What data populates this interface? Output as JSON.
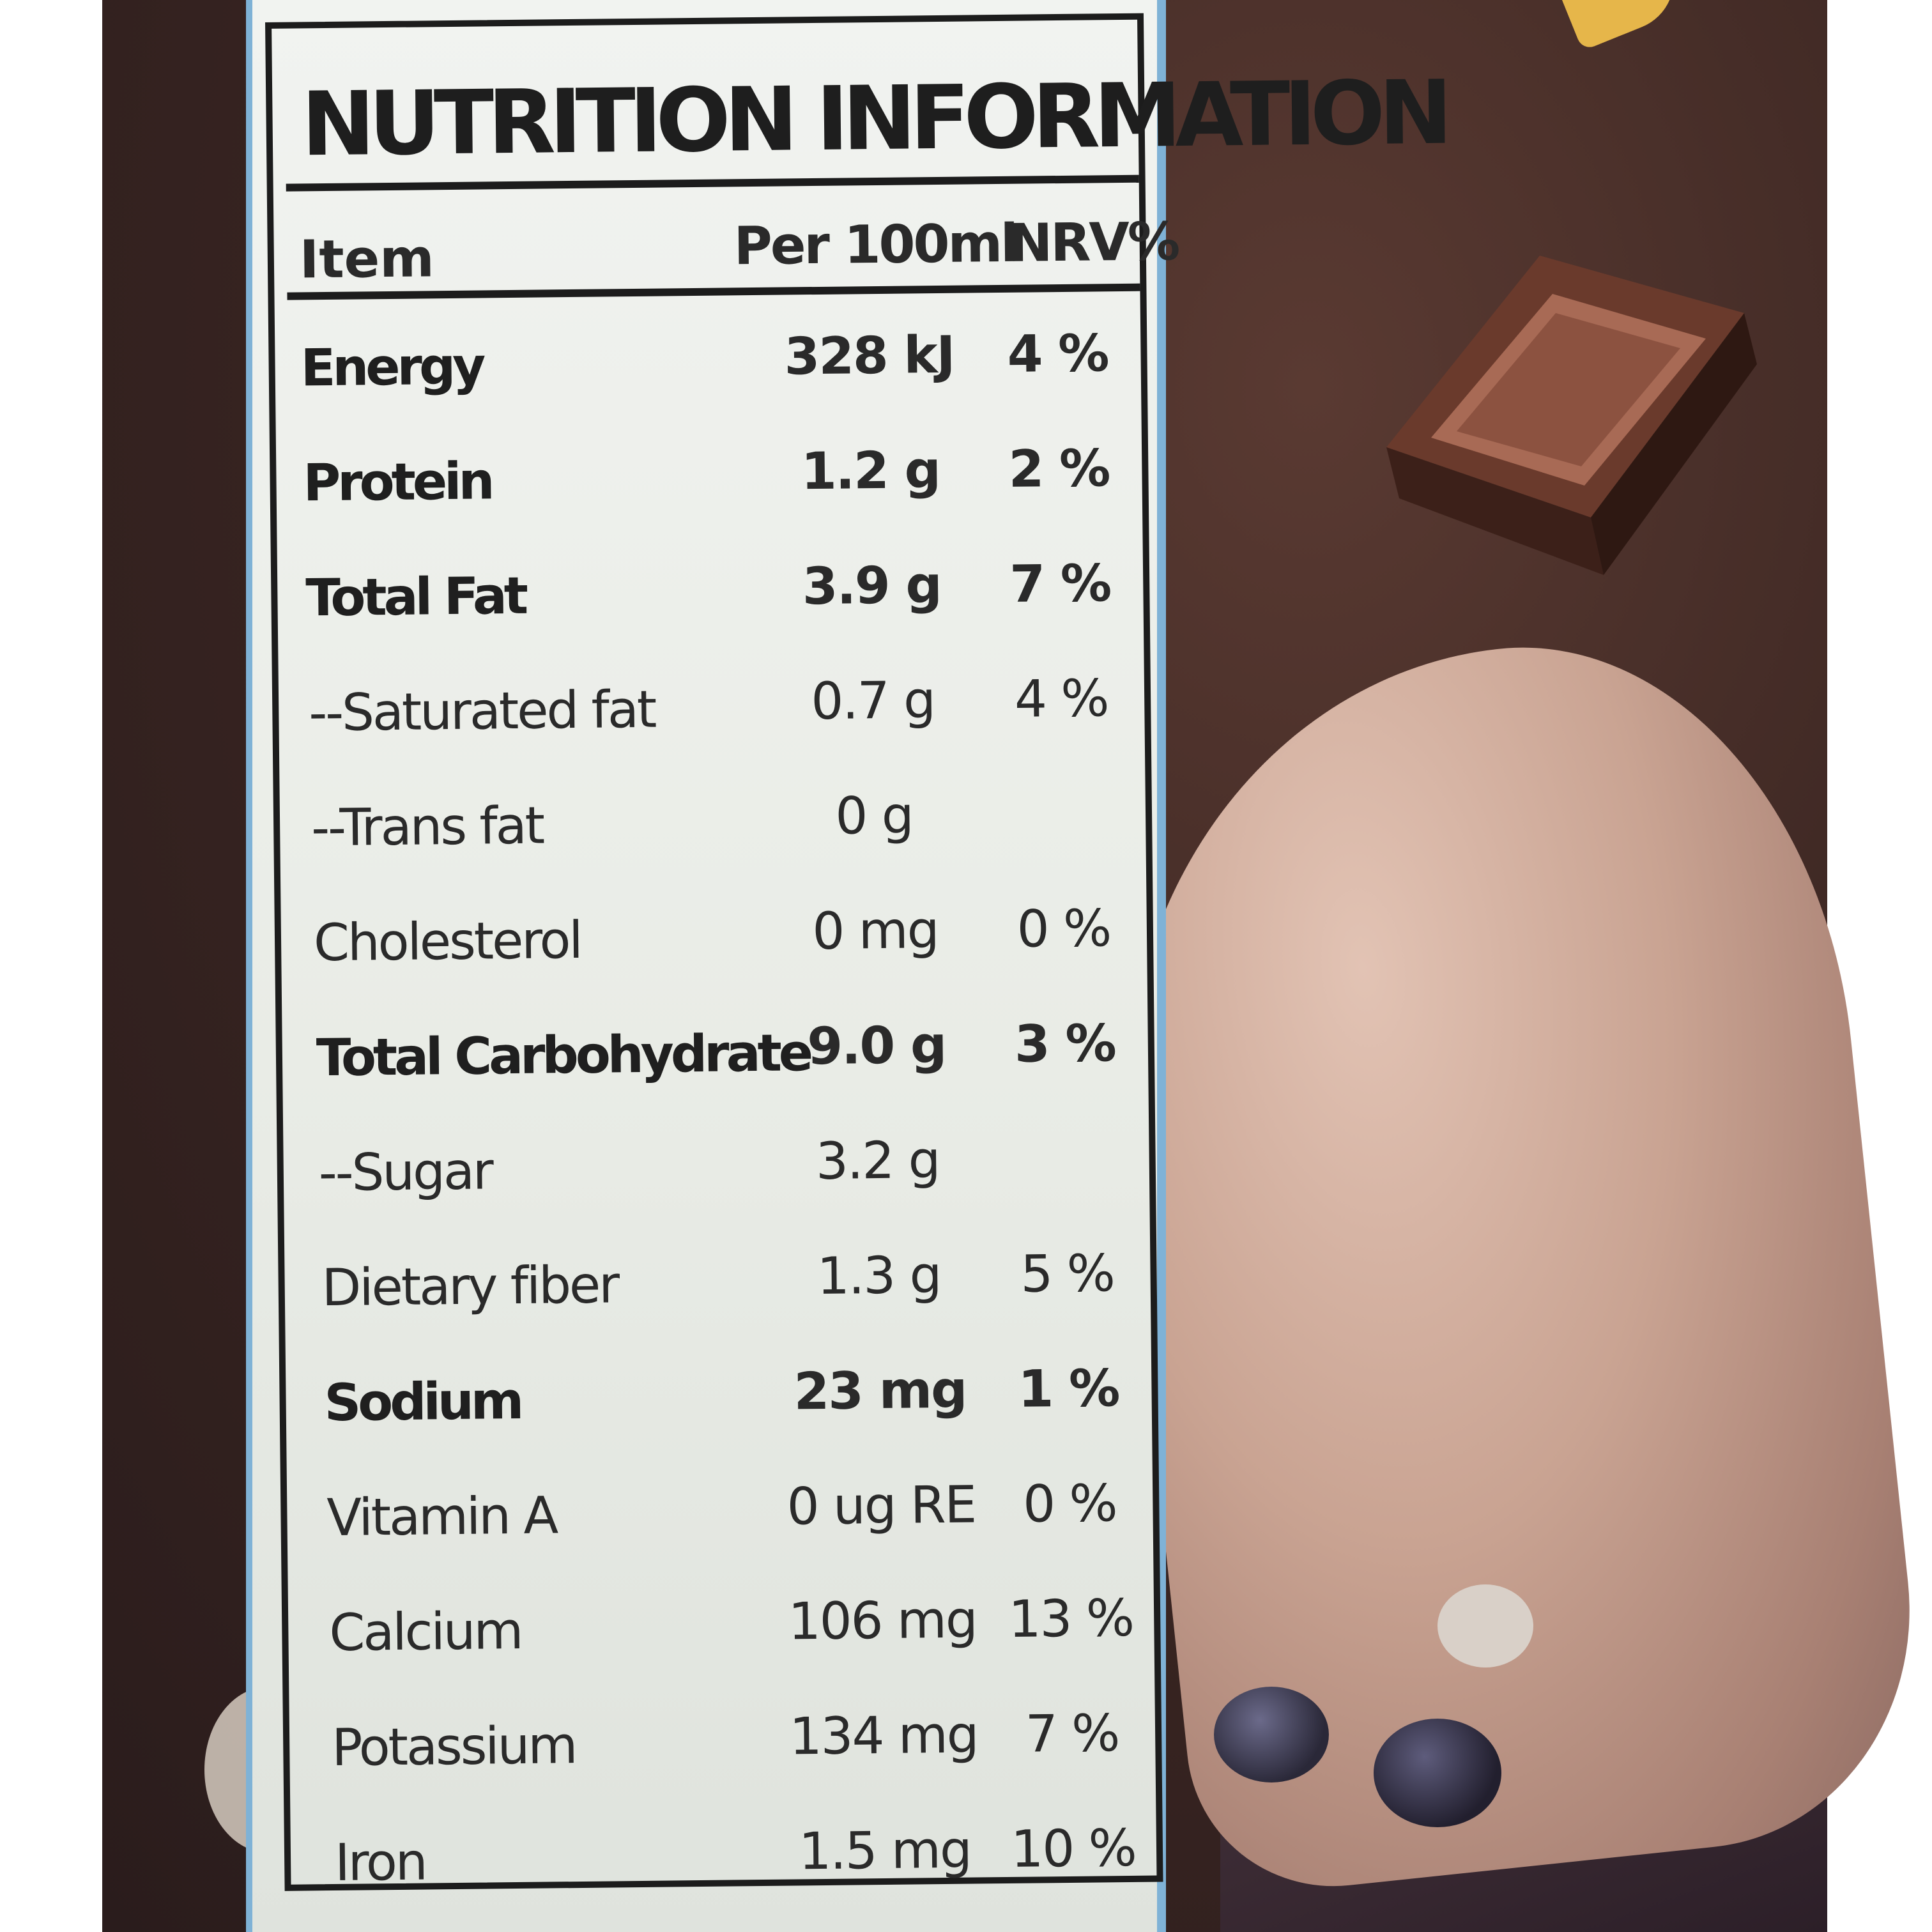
{
  "label": {
    "title": "NUTRITION INFORMATION",
    "columns": {
      "item": "Item",
      "per": "Per 100ml",
      "nrv": "NRV%"
    },
    "rows": [
      {
        "name": "Energy",
        "value": "328 kJ",
        "nrv": "4 %",
        "bold": true
      },
      {
        "name": "Protein",
        "value": "1.2 g",
        "nrv": "2 %",
        "bold": true
      },
      {
        "name": "Total Fat",
        "value": "3.9 g",
        "nrv": "7 %",
        "bold": true
      },
      {
        "name": "--Saturated fat",
        "value": "0.7 g",
        "nrv": "4 %",
        "bold": false
      },
      {
        "name": "--Trans fat",
        "value": "0 g",
        "nrv": "",
        "bold": false
      },
      {
        "name": "Cholesterol",
        "value": "0 mg",
        "nrv": "0 %",
        "bold": false
      },
      {
        "name": "Total Carbohydrate",
        "value": "9.0 g",
        "nrv": "3 %",
        "bold": true
      },
      {
        "name": "--Sugar",
        "value": "3.2 g",
        "nrv": "",
        "bold": false
      },
      {
        "name": "Dietary fiber",
        "value": "1.3 g",
        "nrv": "5 %",
        "bold": false
      },
      {
        "name": "Sodium",
        "value": "23 mg",
        "nrv": "1 %",
        "bold": true
      },
      {
        "name": "Vitamin A",
        "value": "0 ug RE",
        "nrv": "0 %",
        "bold": false
      },
      {
        "name": "Calcium",
        "value": "106 mg",
        "nrv": "13 %",
        "bold": false
      },
      {
        "name": "Potassium",
        "value": "134 mg",
        "nrv": "7 %",
        "bold": false
      },
      {
        "name": "Iron",
        "value": "1.5 mg",
        "nrv": "10 %",
        "bold": false
      }
    ]
  }
}
